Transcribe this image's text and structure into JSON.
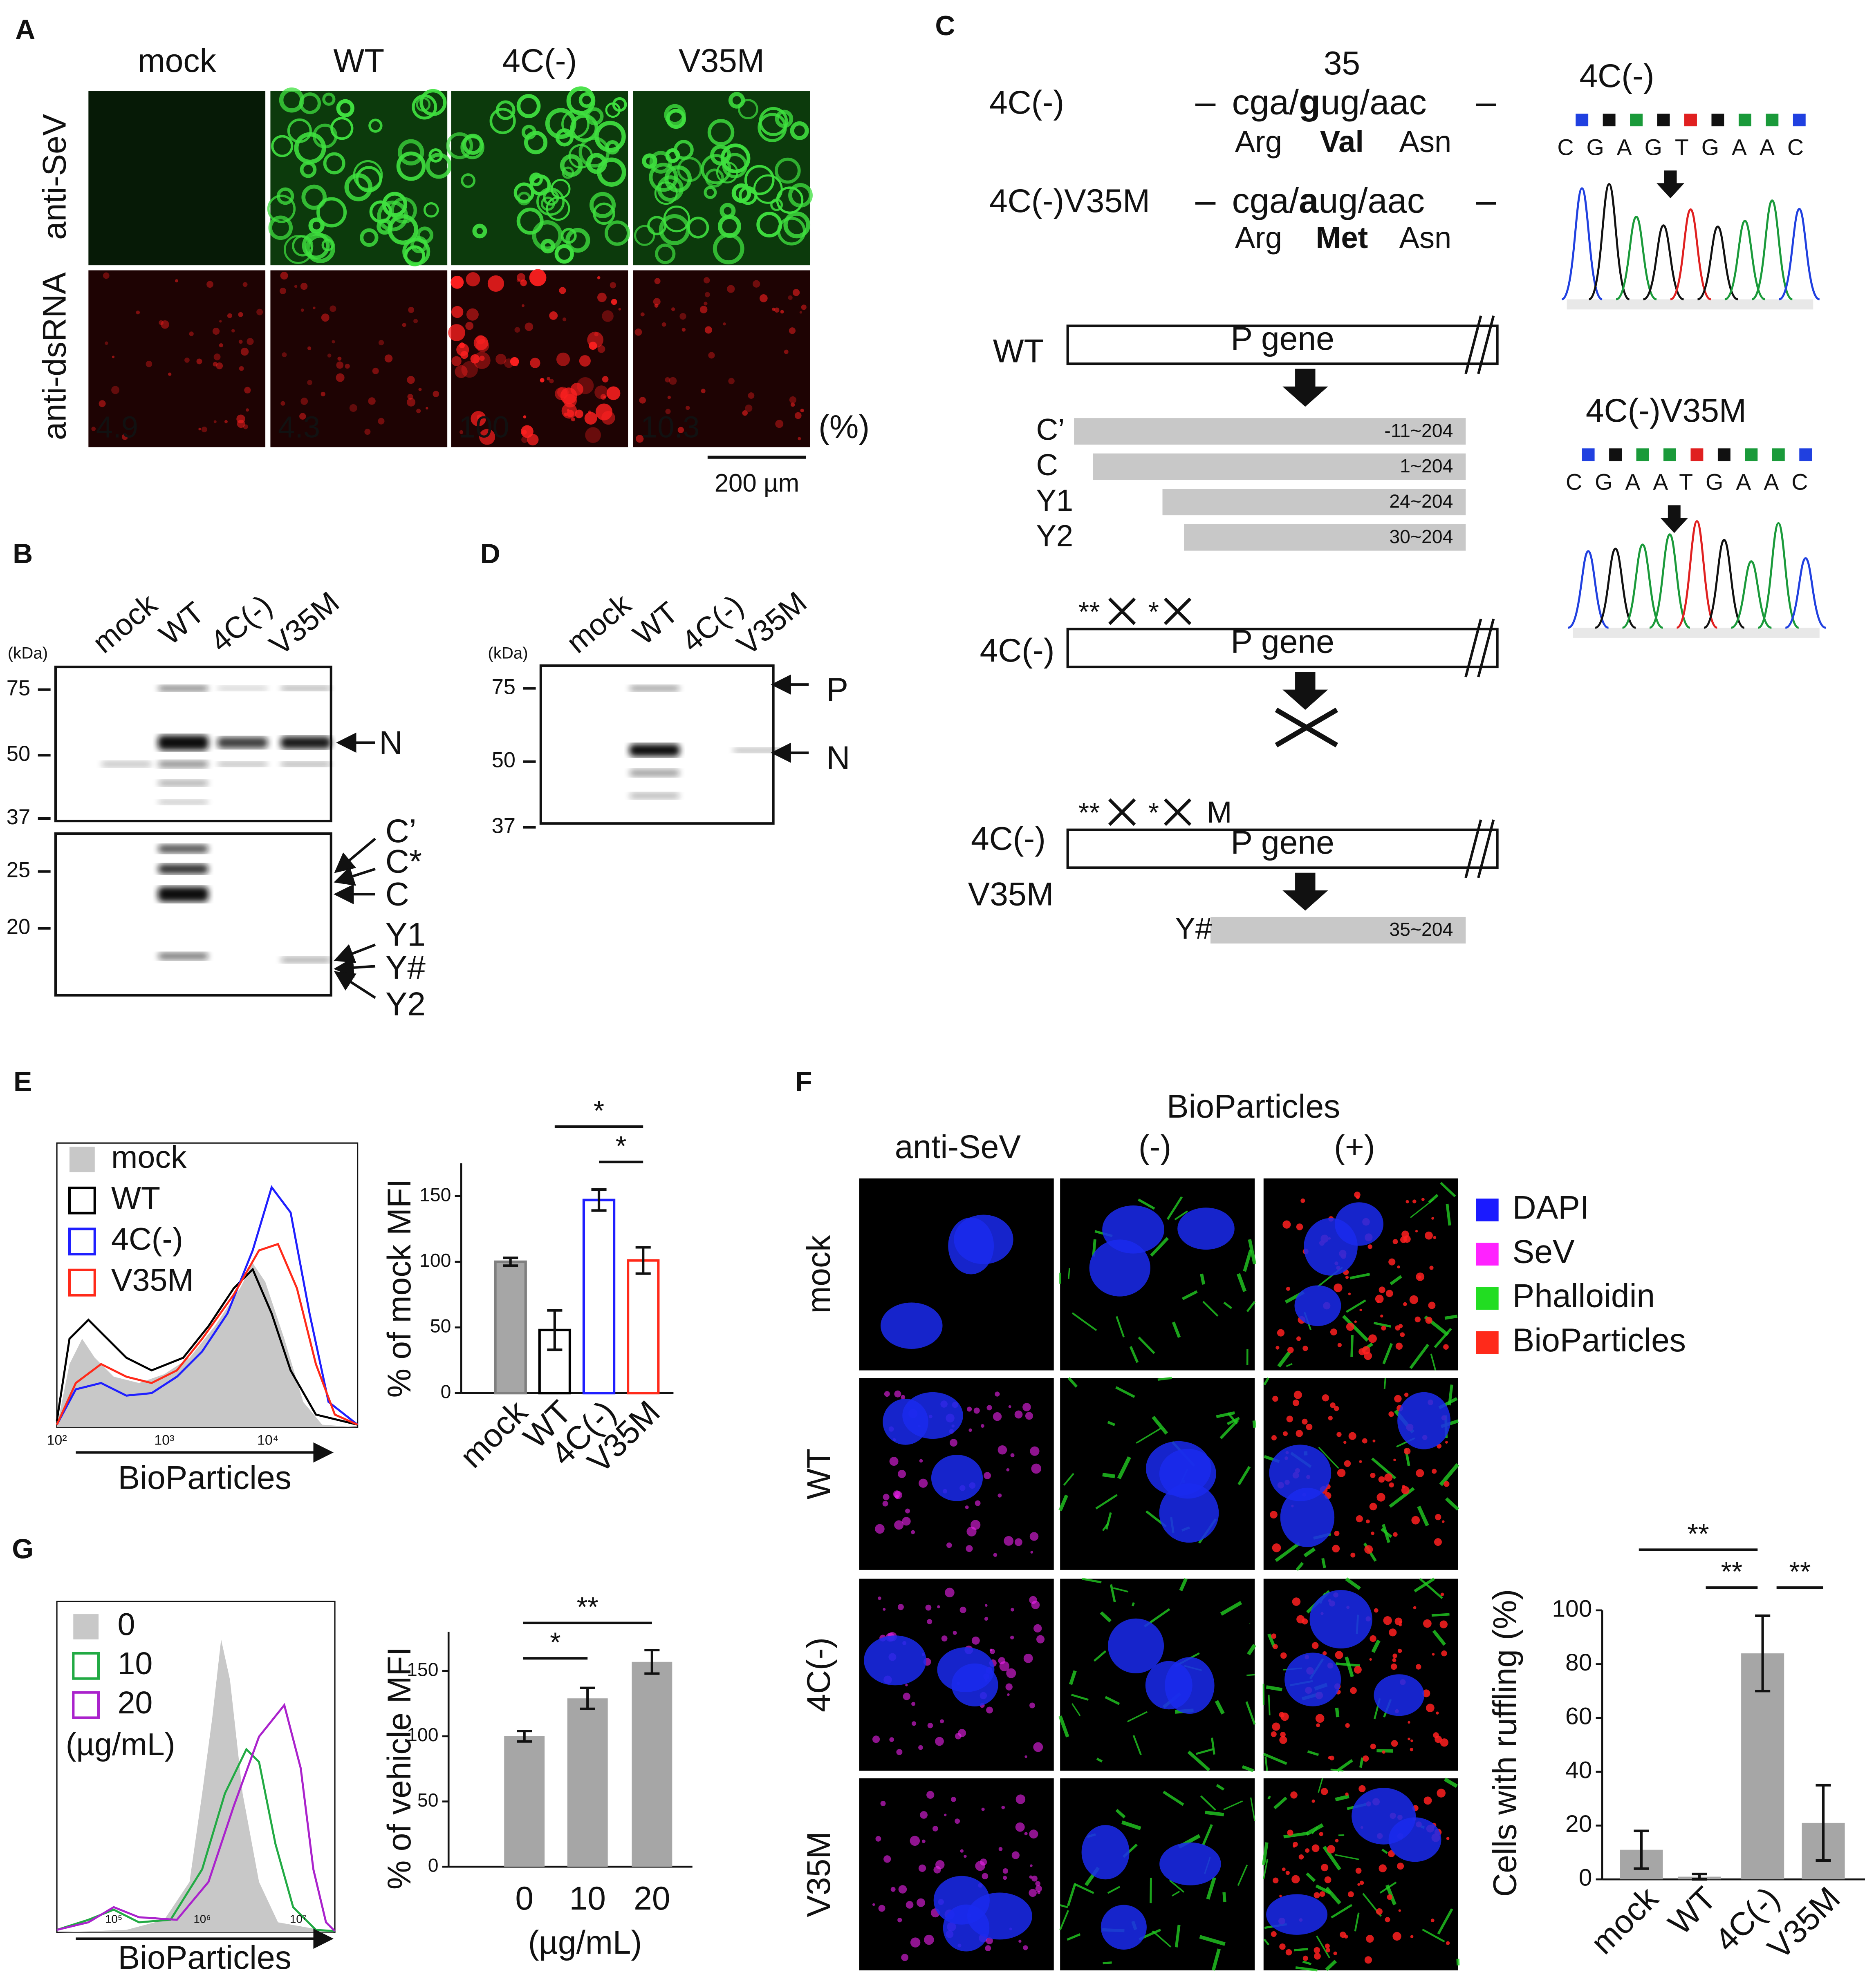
{
  "panel_labels": [
    "A",
    "B",
    "C",
    "D",
    "E",
    "F",
    "G"
  ],
  "panel_a": {
    "columns": [
      "mock",
      "WT",
      "4C(-)",
      "V35M"
    ],
    "rows": [
      "anti-SeV",
      "anti-dsRNA"
    ],
    "percents": [
      4.9,
      4.3,
      100,
      10.3
    ],
    "percent_unit": "(%)",
    "scale_bar": "200 µm"
  },
  "panel_b": {
    "lanes": [
      "mock",
      "WT",
      "4C(-)",
      "V35M"
    ],
    "kda_label": "(kDa)",
    "markers": [
      75,
      50,
      37,
      25,
      20
    ],
    "bands": [
      "N",
      "C’",
      "C*",
      "C",
      "Y1",
      "Y#",
      "Y2"
    ]
  },
  "panel_d": {
    "lanes": [
      "mock",
      "WT",
      "4C(-)",
      "V35M"
    ],
    "kda_label": "(kDa)",
    "markers": [
      75,
      50,
      37
    ],
    "bands": [
      "P",
      "N"
    ]
  },
  "panel_c": {
    "position": 35,
    "rows": [
      {
        "name": "4C(-)",
        "seq": [
          "cga/",
          "g",
          "ug/aac"
        ],
        "aa": [
          "Arg",
          "Val",
          "Asn"
        ]
      },
      {
        "name": "4C(-)V35M",
        "seq": [
          "cga/",
          "a",
          "ug/aac"
        ],
        "aa": [
          "Arg",
          "Met",
          "Asn"
        ]
      }
    ],
    "chromatograms": [
      {
        "title": "4C(-)",
        "bases": "CGAGTGAAC"
      },
      {
        "title": "4C(-)V35M",
        "bases": "CGAATGAAC"
      }
    ],
    "constructs": [
      {
        "name": [
          "WT"
        ],
        "gene": "P gene"
      },
      {
        "name": [
          "4C(-)"
        ],
        "gene": "P gene",
        "marks": [
          "**",
          "*"
        ]
      },
      {
        "name": [
          "4C(-)",
          "V35M"
        ],
        "gene": "P gene",
        "marks": [
          "**",
          "*"
        ],
        "mutation": "M"
      }
    ],
    "products": [
      {
        "name": "C’",
        "range": "-11~204"
      },
      {
        "name": "C",
        "range": "1~204"
      },
      {
        "name": "Y1",
        "range": "24~204"
      },
      {
        "name": "Y2",
        "range": "30~204"
      }
    ],
    "product_v35m": {
      "name": "Y#",
      "range": "35~204"
    }
  },
  "panel_e_histogram": {
    "legend": [
      "mock",
      "WT",
      "4C(-)",
      "V35M"
    ],
    "xticks": [
      "10²",
      "10³",
      "10⁴"
    ],
    "xlabel": "BioParticles"
  },
  "panel_g_histogram": {
    "legend": [
      "0",
      "10",
      "20"
    ],
    "unit": "(µg/mL)",
    "xticks": [
      "10⁵",
      "10⁶",
      "10⁷"
    ],
    "xlabel": "BioParticles"
  },
  "panel_f": {
    "header": "BioParticles",
    "columns": [
      "anti-SeV",
      "(-)",
      "(+)"
    ],
    "rows": [
      "mock",
      "WT",
      "4C(-)",
      "V35M"
    ],
    "legend": [
      {
        "name": "DAPI",
        "color": "#1a1aff"
      },
      {
        "name": "SeV",
        "color": "#ff22ff"
      },
      {
        "name": "Phalloidin",
        "color": "#22dd22"
      },
      {
        "name": "BioParticles",
        "color": "#ff2a1a"
      }
    ]
  },
  "chart_data": [
    {
      "type": "bar",
      "ylabel": "% of mock MFI",
      "categories": [
        "mock",
        "WT",
        "4C(-)",
        "V35M"
      ],
      "values": [
        100,
        48,
        147,
        101
      ],
      "errors": [
        3,
        15,
        8,
        10
      ],
      "colors": [
        "#7f7f7f",
        "#000000",
        "#1f1fff",
        "#ff2a1a"
      ],
      "fills": [
        "#a6a6a6",
        "#ffffff",
        "#ffffff",
        "#ffffff"
      ],
      "ylim": [
        0,
        175
      ],
      "yticks": [
        0,
        50,
        100,
        150
      ],
      "annotations": [
        "*",
        "*"
      ]
    },
    {
      "type": "bar",
      "ylabel": "% of vehicle MFI",
      "xlabel": "(µg/mL)",
      "categories": [
        "0",
        "10",
        "20"
      ],
      "values": [
        100,
        129,
        157
      ],
      "errors": [
        4,
        8,
        9
      ],
      "color": "#a6a6a6",
      "ylim": [
        0,
        180
      ],
      "yticks": [
        0,
        50,
        100,
        150
      ],
      "annotations": [
        "*",
        "**"
      ]
    },
    {
      "type": "bar",
      "ylabel": "Cells with ruffling (%)",
      "categories": [
        "mock",
        "WT",
        "4C(-)",
        "V35M"
      ],
      "values": [
        11,
        1,
        84,
        21
      ],
      "errors": [
        7,
        1,
        14,
        14
      ],
      "color": "#a6a6a6",
      "ylim": [
        0,
        100
      ],
      "yticks": [
        0,
        20,
        40,
        60,
        80,
        100
      ],
      "annotations": [
        "**",
        "**",
        "**"
      ]
    }
  ]
}
